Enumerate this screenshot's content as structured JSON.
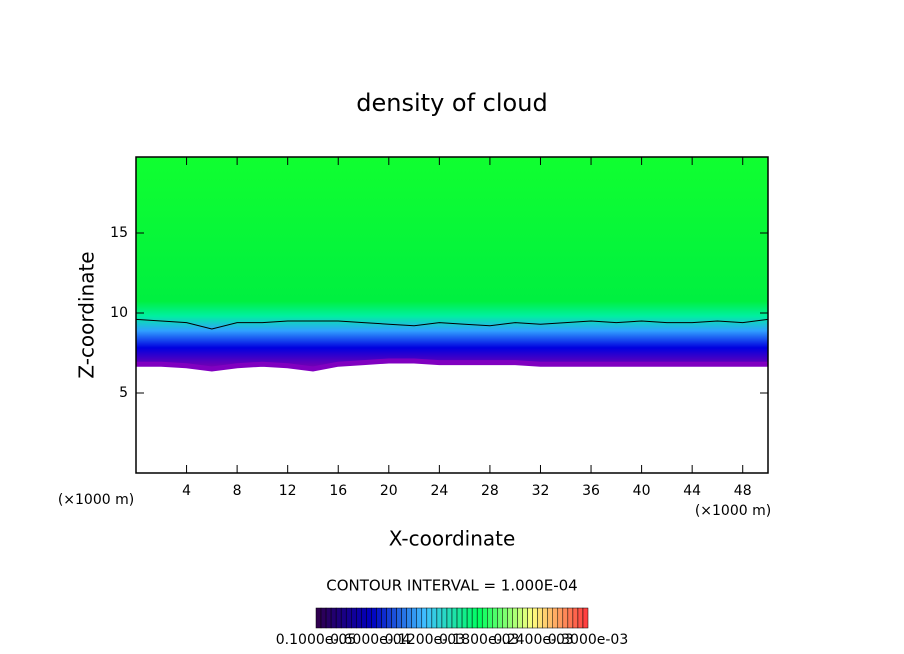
{
  "chart_data": {
    "type": "contour",
    "title": "density of cloud",
    "x_label": "X-coordinate",
    "y_label": "Z-coordinate",
    "x_unit": "(×1000 m)",
    "x_unit_right": "(×1000 m)",
    "contour_interval": "CONTOUR INTERVAL = 1.000E-04",
    "x": [
      0,
      2,
      4,
      6,
      8,
      10,
      12,
      14,
      16,
      18,
      20,
      22,
      24,
      26,
      28,
      30,
      32,
      34,
      36,
      38,
      40,
      42,
      44,
      46,
      48,
      50
    ],
    "series": [
      {
        "name": "cloud base",
        "color": "#8000c0",
        "values": [
          6.8,
          6.8,
          6.7,
          6.5,
          6.7,
          6.8,
          6.7,
          6.5,
          6.8,
          6.9,
          7.0,
          7.0,
          6.9,
          6.9,
          6.9,
          6.9,
          6.8,
          6.8,
          6.8,
          6.8,
          6.8,
          6.8,
          6.8,
          6.8,
          6.8,
          6.8
        ]
      },
      {
        "name": "contour",
        "color": "#000000",
        "values": [
          9.6,
          9.5,
          9.4,
          9.0,
          9.4,
          9.4,
          9.5,
          9.5,
          9.5,
          9.4,
          9.3,
          9.2,
          9.4,
          9.3,
          9.2,
          9.4,
          9.3,
          9.4,
          9.5,
          9.4,
          9.5,
          9.4,
          9.4,
          9.5,
          9.4,
          9.6
        ]
      }
    ],
    "xlim": [
      0,
      50
    ],
    "ylim": [
      0,
      19.75
    ],
    "xticks": [
      4,
      8,
      12,
      16,
      20,
      24,
      28,
      32,
      36,
      40,
      44,
      48
    ],
    "yticks": [
      5,
      10,
      15
    ],
    "colorbar_colors": [
      "#300050",
      "#0000c0",
      "#40c0ff",
      "#00ff60",
      "#ffff80",
      "#ff4040"
    ],
    "colorbar_labels": [
      "0.1000e-05",
      "0.6000e-04",
      "0.1200e-03",
      "0.1800e-03",
      "0.2400e-03",
      "0.3000e-03"
    ]
  }
}
